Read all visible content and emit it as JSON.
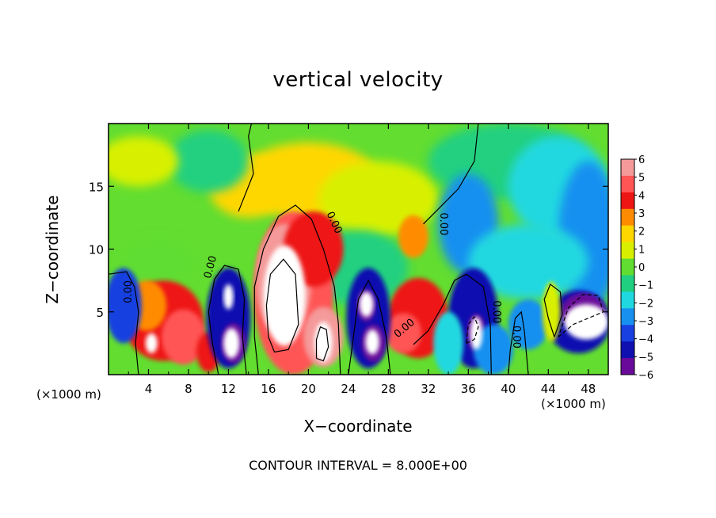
{
  "chart_data": {
    "type": "heatmap",
    "title": "vertical velocity",
    "xlabel": "X−coordinate",
    "ylabel": "Z−coordinate",
    "x_unit_left": "(×1000 m)",
    "x_unit_right": "(×1000 m)",
    "xlim": [
      0,
      50
    ],
    "ylim": [
      0,
      20
    ],
    "x_ticks": [
      4,
      8,
      12,
      16,
      20,
      24,
      28,
      32,
      36,
      40,
      44,
      48
    ],
    "y_ticks": [
      5,
      10,
      15
    ],
    "colorbar": {
      "labels": [
        "6",
        "5",
        "4",
        "3",
        "2",
        "1",
        "0",
        "−1",
        "−2",
        "−3",
        "−4",
        "−5",
        "−6"
      ],
      "colors": [
        "#f59a9a",
        "#ff5555",
        "#ee1515",
        "#ff8c00",
        "#ffd700",
        "#d8f000",
        "#60dd30",
        "#20d080",
        "#20d8e0",
        "#1890f0",
        "#1840e0",
        "#1010b0",
        "#6a0a9a"
      ]
    },
    "features": [
      {
        "x": 17.5,
        "z": 6.5,
        "w": 7,
        "kind": "updraft-core"
      },
      {
        "x": 21.5,
        "z": 2.7,
        "w": 6.5,
        "kind": "updraft"
      },
      {
        "x": 5.5,
        "z": 4.0,
        "w": 4,
        "kind": "updraft"
      },
      {
        "x": 31,
        "z": 4.5,
        "w": 5,
        "kind": "updraft"
      },
      {
        "x": 30.5,
        "z": 11,
        "w": 2.5,
        "kind": "updraft"
      },
      {
        "x": 12,
        "z": 4.5,
        "w": -5,
        "kind": "downdraft"
      },
      {
        "x": 26,
        "z": 4.5,
        "w": -5.5,
        "kind": "downdraft"
      },
      {
        "x": 36.5,
        "z": 3.5,
        "w": -5.5,
        "kind": "downdraft"
      },
      {
        "x": 47,
        "z": 5,
        "w": -6,
        "kind": "downdraft"
      },
      {
        "x": 2,
        "z": 6,
        "w": -3,
        "kind": "downdraft"
      }
    ],
    "contour_labels": [
      "0.00",
      "0.00",
      "0.00",
      "0.00",
      "0.00",
      "0.00",
      "0.00"
    ]
  },
  "contour_note": "CONTOUR INTERVAL = 8.000E+00"
}
